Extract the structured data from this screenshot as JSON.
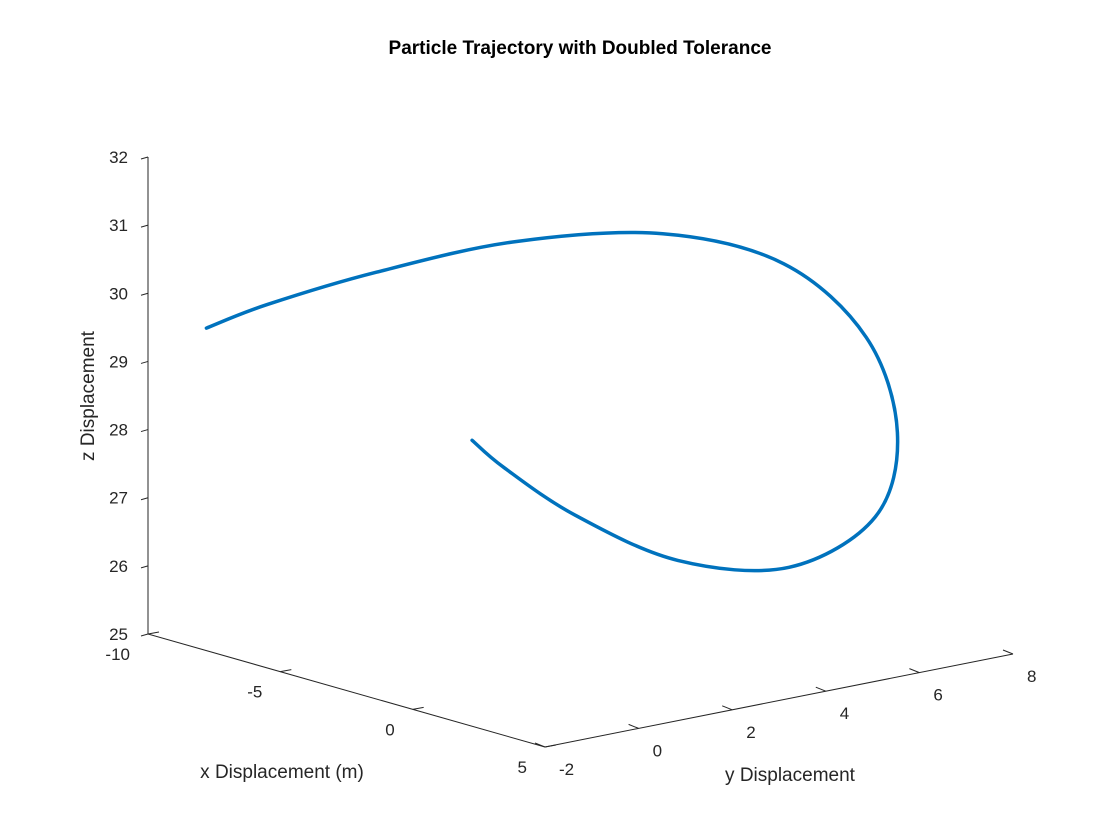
{
  "chart_data": {
    "type": "line",
    "projection": "3d",
    "title": "Particle Trajectory with Doubled Tolerance",
    "xlabel": "x Displacement (m)",
    "ylabel": "y Displacement",
    "zlabel": "z Displacement",
    "xlim": [
      -10,
      5
    ],
    "ylim": [
      -2,
      8
    ],
    "zlim": [
      25,
      32
    ],
    "x_ticks": [
      "-10",
      "-5",
      "0",
      "5"
    ],
    "y_ticks": [
      "-2",
      "0",
      "2",
      "4",
      "6",
      "8"
    ],
    "z_ticks": [
      "25",
      "26",
      "27",
      "28",
      "29",
      "30",
      "31",
      "32"
    ],
    "grid": false,
    "series": [
      {
        "color": "#0072BD",
        "x": [
          -8.5,
          -7.8,
          -6.5,
          -4.6,
          -2.4,
          -0.3,
          1.4,
          2.4,
          2.8,
          2.2,
          1.0,
          -0.4,
          -1.5,
          -2.0
        ],
        "y": [
          -1.6,
          -0.7,
          0.9,
          2.8,
          4.7,
          6.1,
          6.9,
          7.0,
          6.3,
          4.8,
          3.1,
          1.7,
          0.8,
          0.4
        ],
        "z": [
          29.6,
          29.9,
          30.3,
          30.7,
          30.8,
          30.4,
          29.4,
          28.1,
          27.0,
          26.4,
          26.6,
          27.3,
          28.0,
          28.4
        ]
      }
    ]
  }
}
